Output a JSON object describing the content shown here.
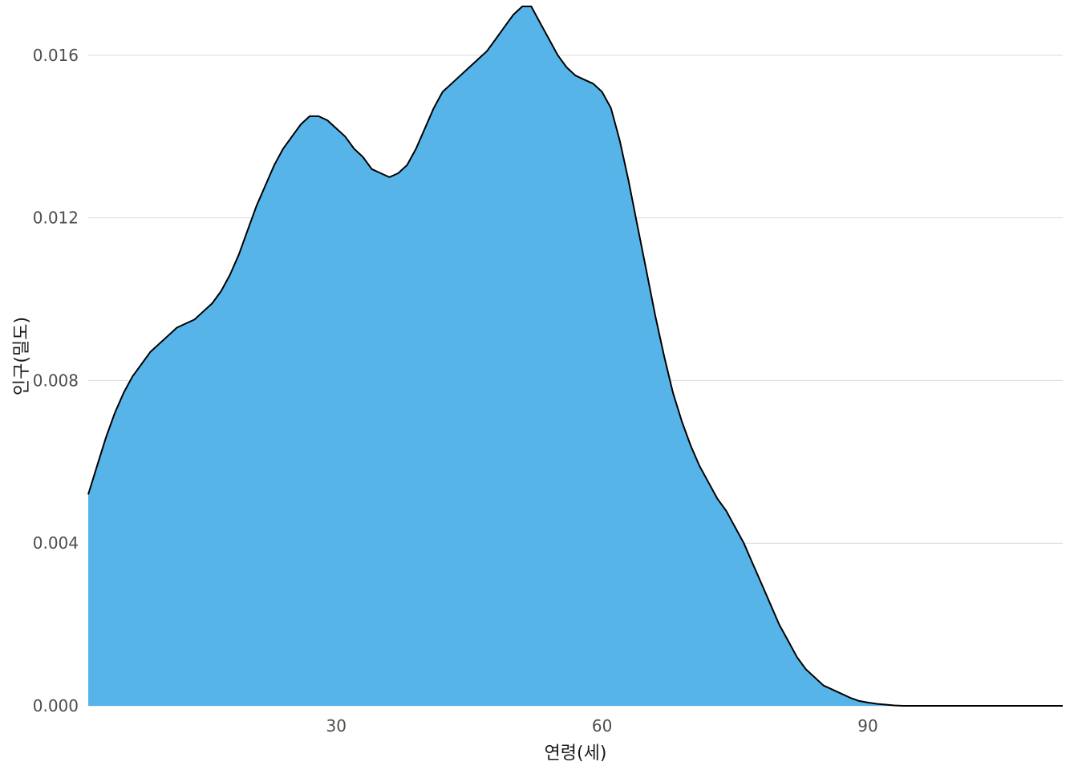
{
  "chart_data": {
    "type": "area",
    "subtype": "density",
    "title": "",
    "xlabel": "연령(세)",
    "ylabel": "인구(밀도)",
    "xlim": [
      2,
      112
    ],
    "ylim": [
      0,
      0.0172
    ],
    "x_ticks": [
      30,
      60,
      90
    ],
    "x_tick_labels": [
      "30",
      "60",
      "90"
    ],
    "y_ticks": [
      0,
      0.004,
      0.008,
      0.012,
      0.016
    ],
    "y_tick_labels": [
      "0.000",
      "0.004",
      "0.008",
      "0.012",
      "0.016"
    ],
    "grid": "horizontal-major",
    "legend": "none",
    "fill_color": "#56B4E9",
    "line_color": "#000000",
    "series": [
      {
        "x": [
          2,
          3,
          4,
          5,
          6,
          7,
          8,
          9,
          10,
          11,
          12,
          13,
          14,
          15,
          16,
          17,
          18,
          19,
          20,
          21,
          22,
          23,
          24,
          25,
          26,
          27,
          28,
          29,
          30,
          31,
          32,
          33,
          34,
          35,
          36,
          37,
          38,
          39,
          40,
          41,
          42,
          43,
          44,
          45,
          46,
          47,
          48,
          49,
          50,
          51,
          52,
          53,
          54,
          55,
          56,
          57,
          58,
          59,
          60,
          61,
          62,
          63,
          64,
          65,
          66,
          67,
          68,
          69,
          70,
          71,
          72,
          73,
          74,
          75,
          76,
          77,
          78,
          79,
          80,
          81,
          82,
          83,
          84,
          85,
          86,
          87,
          88,
          89,
          90,
          91,
          92,
          93,
          94,
          95,
          96,
          97,
          98,
          99,
          100,
          101,
          102,
          104,
          106,
          108,
          110,
          112
        ],
        "y": [
          0.0052,
          0.0059,
          0.0066,
          0.0072,
          0.0077,
          0.0081,
          0.0084,
          0.0087,
          0.0089,
          0.0091,
          0.0093,
          0.0094,
          0.0095,
          0.0097,
          0.0099,
          0.0102,
          0.0106,
          0.0111,
          0.0117,
          0.0123,
          0.0128,
          0.0133,
          0.0137,
          0.014,
          0.0143,
          0.0145,
          0.0145,
          0.0144,
          0.0142,
          0.014,
          0.0137,
          0.0135,
          0.0132,
          0.0131,
          0.013,
          0.0131,
          0.0133,
          0.0137,
          0.0142,
          0.0147,
          0.0151,
          0.0153,
          0.0155,
          0.0157,
          0.0159,
          0.0161,
          0.0164,
          0.0167,
          0.017,
          0.0172,
          0.0172,
          0.0168,
          0.0164,
          0.016,
          0.0157,
          0.0155,
          0.0154,
          0.0153,
          0.0151,
          0.0147,
          0.0139,
          0.0129,
          0.0118,
          0.0107,
          0.0096,
          0.0086,
          0.0077,
          0.007,
          0.0064,
          0.0059,
          0.0055,
          0.0051,
          0.0048,
          0.0044,
          0.004,
          0.0035,
          0.003,
          0.0025,
          0.002,
          0.0016,
          0.0012,
          0.0009,
          0.0007,
          0.0005,
          0.0004,
          0.0003,
          0.0002,
          0.00012,
          8e-05,
          5e-05,
          3e-05,
          1e-05,
          0,
          0,
          0,
          0,
          0,
          0,
          0,
          0,
          0,
          0,
          0,
          0,
          0,
          0
        ]
      }
    ]
  }
}
